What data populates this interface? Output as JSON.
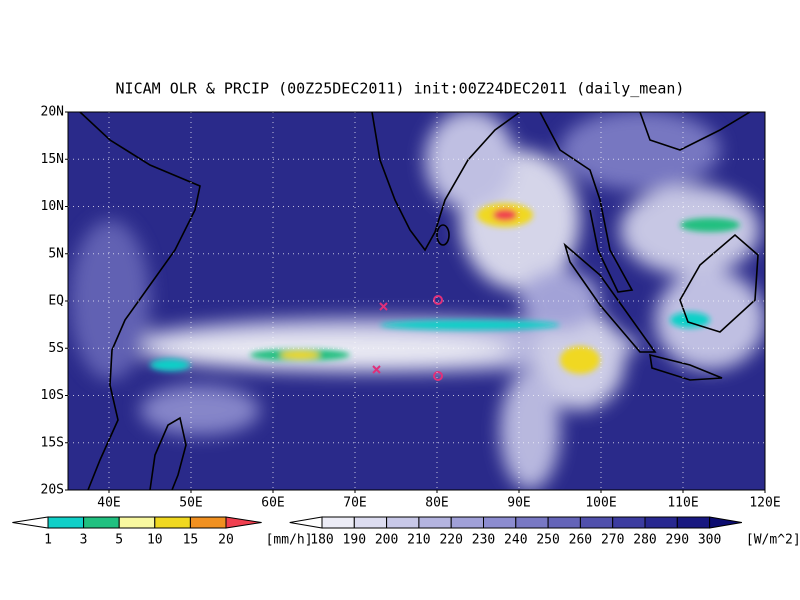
{
  "title": "NICAM OLR & PRCIP (00Z25DEC2011) init:00Z24DEC2011 (daily_mean)",
  "lat_labels": [
    "20N",
    "15N",
    "10N",
    "5N",
    "EQ",
    "5S",
    "10S",
    "15S",
    "20S"
  ],
  "lon_labels": [
    "40E",
    "50E",
    "60E",
    "70E",
    "80E",
    "90E",
    "100E",
    "110E",
    "120E"
  ],
  "precip_legend": {
    "labels": [
      "1",
      "3",
      "5",
      "10",
      "15",
      "20"
    ],
    "unit": "[mm/h]",
    "colors": [
      "#ffffff",
      "#10d0c8",
      "#20c080",
      "#f8f8a0",
      "#f0d820",
      "#f09020",
      "#f04050"
    ]
  },
  "olr_legend": {
    "labels": [
      "180",
      "190",
      "200",
      "210",
      "220",
      "230",
      "240",
      "250",
      "260",
      "270",
      "280",
      "290",
      "300"
    ],
    "unit": "[W/m^2]",
    "colors": [
      "#ffffff",
      "#ececf6",
      "#dcdcf0",
      "#c8c8e8",
      "#b4b4e0",
      "#a0a0d8",
      "#8c8cd0",
      "#7878c4",
      "#6464b8",
      "#5050ac",
      "#3c3ca0",
      "#282890",
      "#181880",
      "#0c0c70"
    ]
  }
}
